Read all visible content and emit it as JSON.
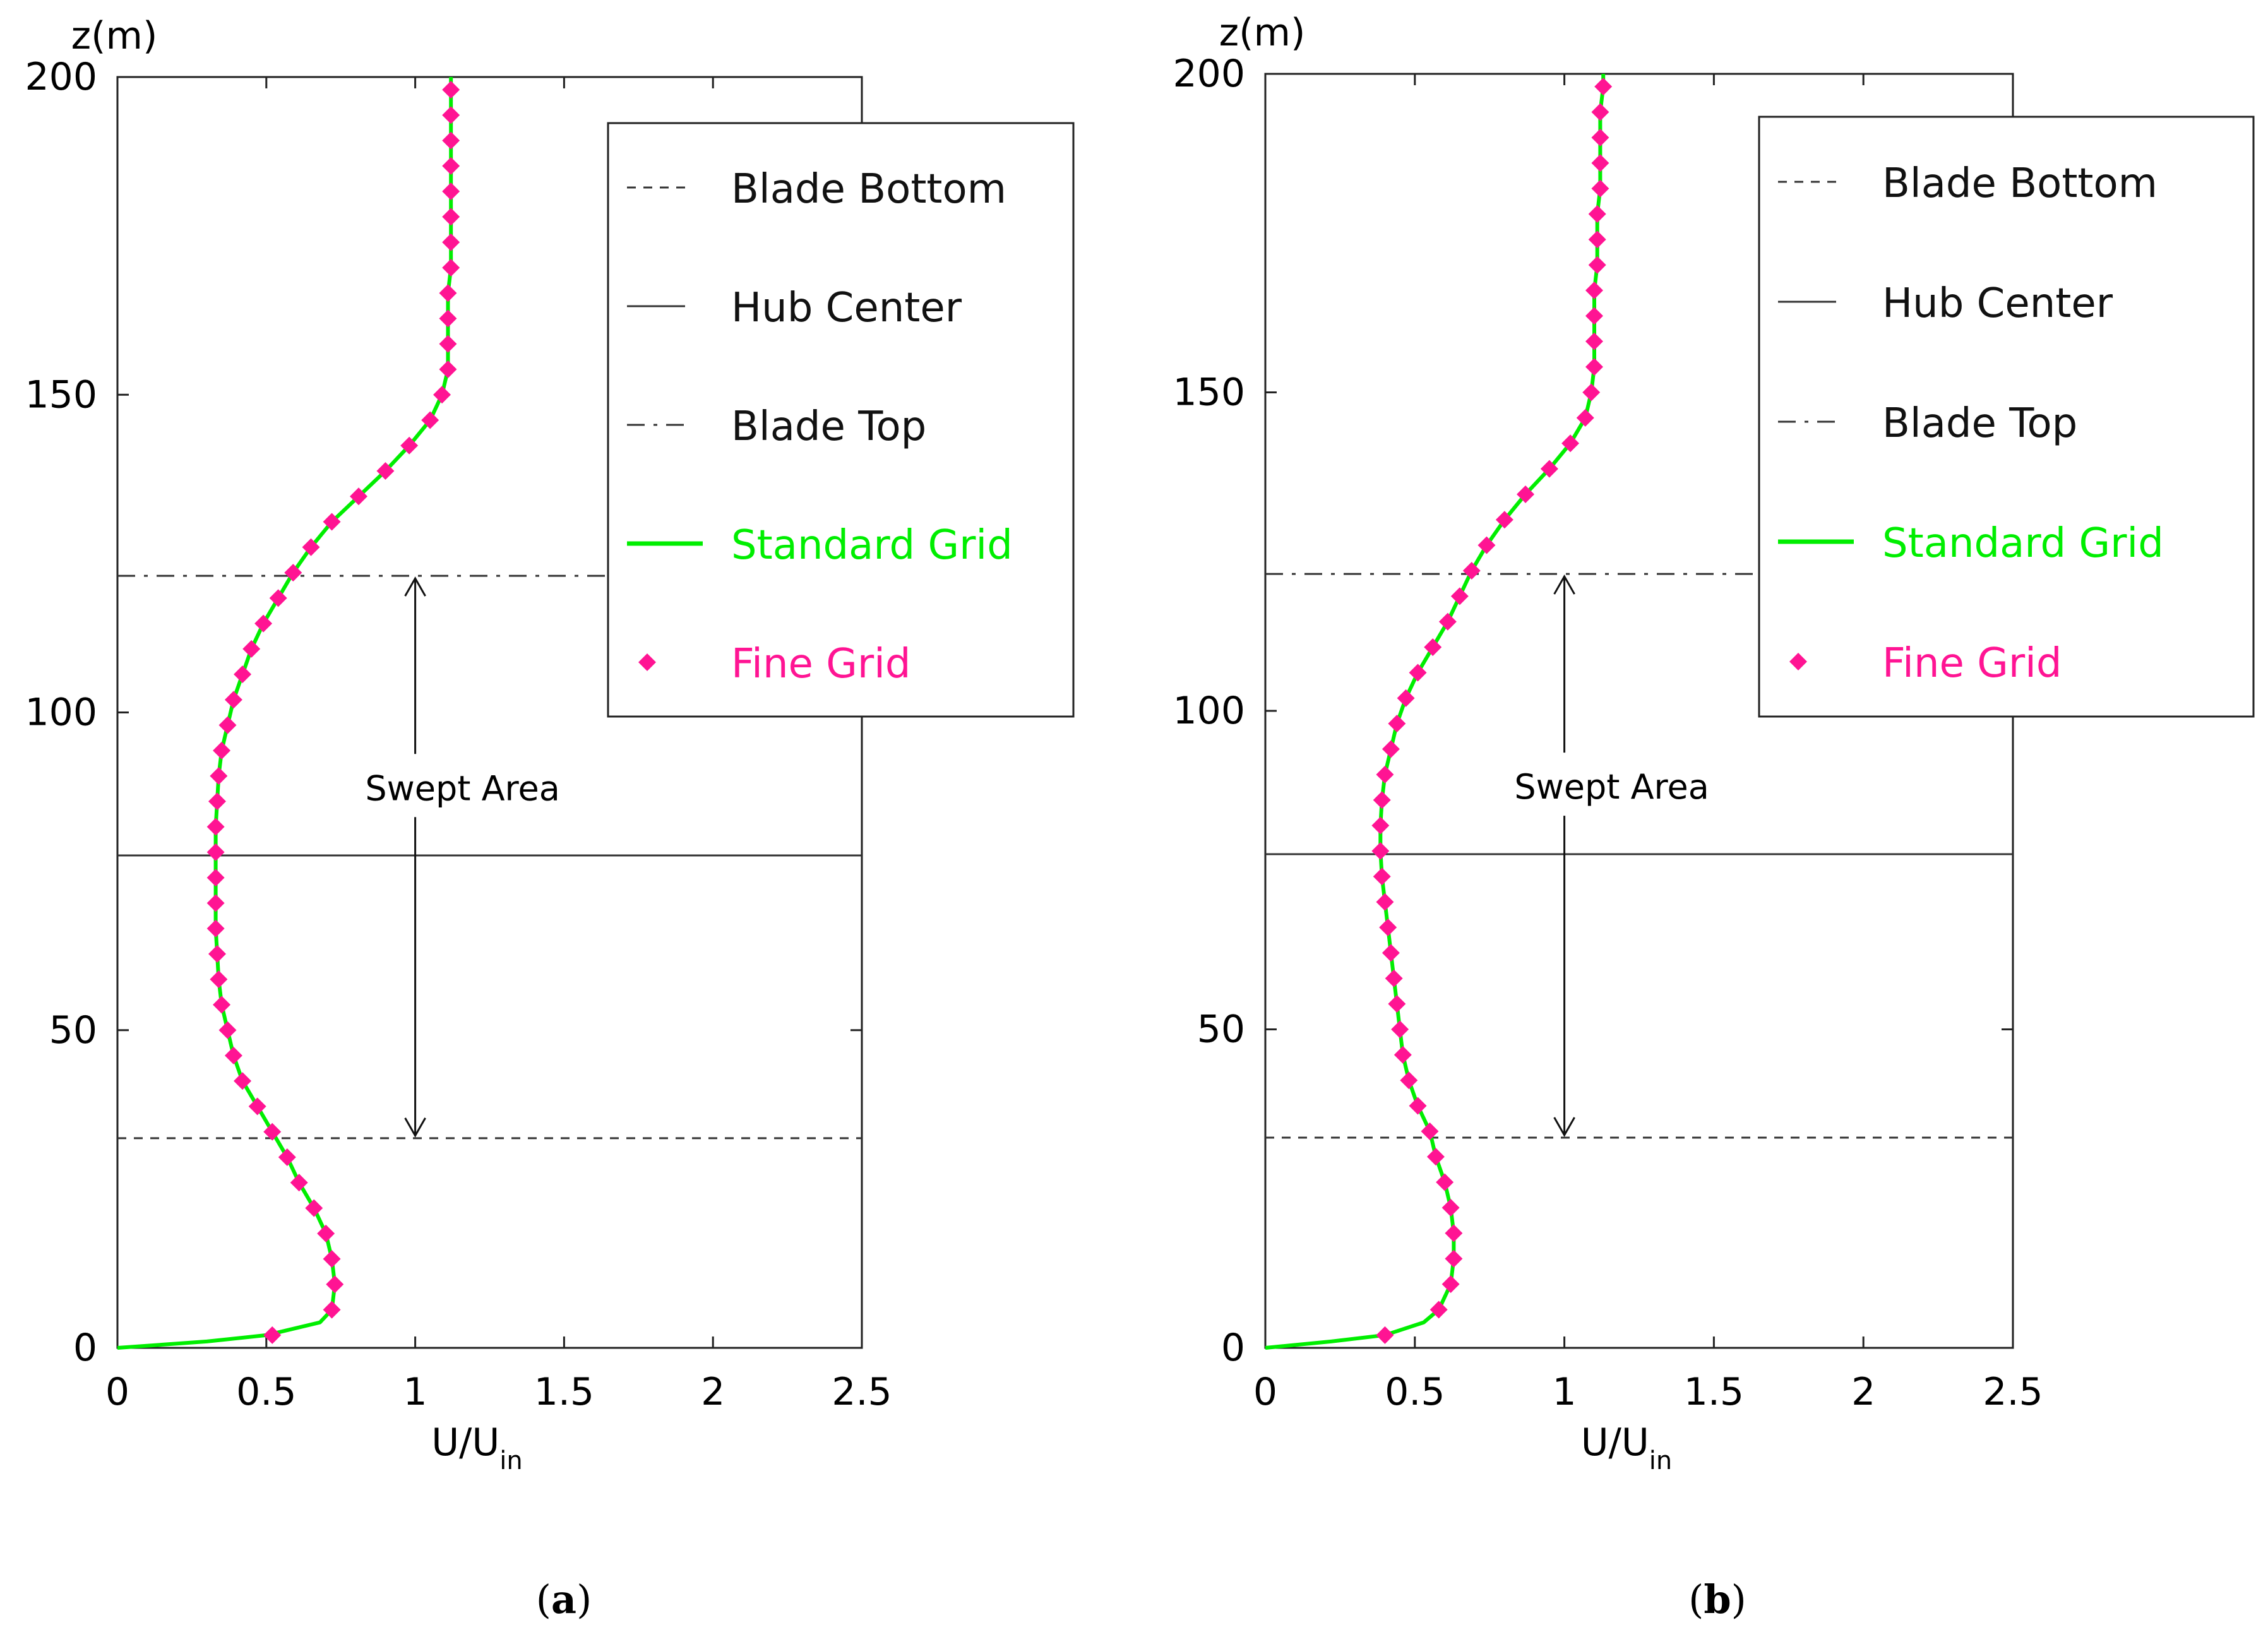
{
  "chart_data": [
    {
      "type": "line",
      "panel": "a",
      "caption": {
        "open": "(",
        "letter": "a",
        "close": ")"
      },
      "ylabel": "z(m)",
      "xlabel": {
        "main": "U/U",
        "sub": "in"
      },
      "xlim": [
        0,
        2.5
      ],
      "ylim": [
        0,
        200
      ],
      "xticks": [
        0,
        0.5,
        1,
        1.5,
        2,
        2.5
      ],
      "xtick_labels": [
        "0",
        "0.5",
        "1",
        "1.5",
        "2",
        "2.5"
      ],
      "yticks": [
        0,
        50,
        100,
        150,
        200
      ],
      "ytick_labels": [
        "0",
        "50",
        "100",
        "150",
        "200"
      ],
      "reference_lines": [
        {
          "name": "Blade Bottom",
          "z": 33,
          "style": "dashed"
        },
        {
          "name": "Hub Center",
          "z": 77.5,
          "style": "solid"
        },
        {
          "name": "Blade Top",
          "z": 121.5,
          "style": "dashdot"
        }
      ],
      "annotation": {
        "text": "Swept Area",
        "x": 1.0,
        "from": 121.5,
        "to": 33,
        "label_z": 88
      },
      "legend": [
        {
          "label": "Blade Bottom",
          "style": "dashed",
          "color": "#333333"
        },
        {
          "label": "Hub Center",
          "style": "solid",
          "color": "#333333"
        },
        {
          "label": "Blade Top",
          "style": "dashdot",
          "color": "#333333"
        },
        {
          "label": "Standard Grid",
          "style": "line",
          "color": "#00ee00"
        },
        {
          "label": "Fine Grid",
          "style": "diamond",
          "color": "#ff1493"
        }
      ],
      "series": [
        {
          "name": "Standard Grid",
          "color": "#00ee00",
          "z": [
            0,
            1,
            2,
            4,
            6,
            10,
            14,
            18,
            22,
            26,
            30,
            34,
            38,
            42,
            46,
            50,
            54,
            58,
            62,
            66,
            70,
            74,
            78,
            82,
            86,
            90,
            94,
            98,
            102,
            106,
            110,
            114,
            118,
            122,
            126,
            130,
            134,
            138,
            142,
            146,
            150,
            154,
            158,
            162,
            166,
            170,
            174,
            178,
            182,
            186,
            190,
            194,
            198,
            200
          ],
          "u": [
            0,
            0.3,
            0.5,
            0.68,
            0.72,
            0.73,
            0.72,
            0.7,
            0.66,
            0.61,
            0.57,
            0.52,
            0.47,
            0.42,
            0.39,
            0.37,
            0.35,
            0.34,
            0.335,
            0.33,
            0.33,
            0.33,
            0.33,
            0.33,
            0.335,
            0.34,
            0.35,
            0.37,
            0.39,
            0.42,
            0.45,
            0.49,
            0.54,
            0.59,
            0.65,
            0.72,
            0.81,
            0.9,
            0.98,
            1.05,
            1.09,
            1.11,
            1.11,
            1.11,
            1.11,
            1.12,
            1.12,
            1.12,
            1.12,
            1.12,
            1.12,
            1.12,
            1.12,
            1.12
          ]
        },
        {
          "name": "Fine Grid",
          "color": "#ff1493",
          "z": [
            2,
            6,
            10,
            14,
            18,
            22,
            26,
            30,
            34,
            38,
            42,
            46,
            50,
            54,
            58,
            62,
            66,
            70,
            74,
            78,
            82,
            86,
            90,
            94,
            98,
            102,
            106,
            110,
            114,
            118,
            122,
            126,
            130,
            134,
            138,
            142,
            146,
            150,
            154,
            158,
            162,
            166,
            170,
            174,
            178,
            182,
            186,
            190,
            194,
            198
          ],
          "u": [
            0.52,
            0.72,
            0.73,
            0.72,
            0.7,
            0.66,
            0.61,
            0.57,
            0.52,
            0.47,
            0.42,
            0.39,
            0.37,
            0.35,
            0.34,
            0.335,
            0.33,
            0.33,
            0.33,
            0.33,
            0.33,
            0.335,
            0.34,
            0.35,
            0.37,
            0.39,
            0.42,
            0.45,
            0.49,
            0.54,
            0.59,
            0.65,
            0.72,
            0.81,
            0.9,
            0.98,
            1.05,
            1.09,
            1.11,
            1.11,
            1.11,
            1.11,
            1.12,
            1.12,
            1.12,
            1.12,
            1.12,
            1.12,
            1.12,
            1.12
          ]
        }
      ]
    },
    {
      "type": "line",
      "panel": "b",
      "caption": {
        "open": "(",
        "letter": "b",
        "close": ")"
      },
      "ylabel": "z(m)",
      "xlabel": {
        "main": "U/U",
        "sub": "in"
      },
      "xlim": [
        0,
        2.5
      ],
      "ylim": [
        0,
        200
      ],
      "xticks": [
        0,
        0.5,
        1,
        1.5,
        2,
        2.5
      ],
      "xtick_labels": [
        "0",
        "0.5",
        "1",
        "1.5",
        "2",
        "2.5"
      ],
      "yticks": [
        0,
        50,
        100,
        150,
        200
      ],
      "ytick_labels": [
        "0",
        "50",
        "100",
        "150",
        "200"
      ],
      "reference_lines": [
        {
          "name": "Blade Bottom",
          "z": 33,
          "style": "dashed"
        },
        {
          "name": "Hub Center",
          "z": 77.5,
          "style": "solid"
        },
        {
          "name": "Blade Top",
          "z": 121.5,
          "style": "dashdot"
        }
      ],
      "annotation": {
        "text": "Swept Area",
        "x": 1.0,
        "from": 121.5,
        "to": 33,
        "label_z": 88
      },
      "legend": [
        {
          "label": "Blade Bottom",
          "style": "dashed",
          "color": "#333333"
        },
        {
          "label": "Hub Center",
          "style": "solid",
          "color": "#333333"
        },
        {
          "label": "Blade Top",
          "style": "dashdot",
          "color": "#333333"
        },
        {
          "label": "Standard Grid",
          "style": "line",
          "color": "#00ee00"
        },
        {
          "label": "Fine Grid",
          "style": "diamond",
          "color": "#ff1493"
        }
      ],
      "series": [
        {
          "name": "Standard Grid",
          "color": "#00ee00",
          "z": [
            0,
            1,
            2,
            4,
            6,
            10,
            14,
            18,
            22,
            26,
            30,
            34,
            38,
            42,
            46,
            50,
            54,
            58,
            62,
            66,
            70,
            74,
            78,
            82,
            86,
            90,
            94,
            98,
            102,
            106,
            110,
            114,
            118,
            122,
            126,
            130,
            134,
            138,
            142,
            146,
            150,
            154,
            158,
            162,
            166,
            170,
            174,
            178,
            182,
            186,
            190,
            194,
            198,
            200
          ],
          "u": [
            0,
            0.22,
            0.4,
            0.53,
            0.58,
            0.62,
            0.63,
            0.63,
            0.62,
            0.6,
            0.57,
            0.55,
            0.51,
            0.48,
            0.46,
            0.45,
            0.44,
            0.43,
            0.42,
            0.41,
            0.4,
            0.39,
            0.385,
            0.385,
            0.39,
            0.4,
            0.42,
            0.44,
            0.47,
            0.51,
            0.56,
            0.61,
            0.65,
            0.69,
            0.74,
            0.8,
            0.87,
            0.95,
            1.02,
            1.07,
            1.09,
            1.1,
            1.1,
            1.1,
            1.1,
            1.11,
            1.11,
            1.11,
            1.12,
            1.12,
            1.12,
            1.12,
            1.13,
            1.13
          ]
        },
        {
          "name": "Fine Grid",
          "color": "#ff1493",
          "z": [
            2,
            6,
            10,
            14,
            18,
            22,
            26,
            30,
            34,
            38,
            42,
            46,
            50,
            54,
            58,
            62,
            66,
            70,
            74,
            78,
            82,
            86,
            90,
            94,
            98,
            102,
            106,
            110,
            114,
            118,
            122,
            126,
            130,
            134,
            138,
            142,
            146,
            150,
            154,
            158,
            162,
            166,
            170,
            174,
            178,
            182,
            186,
            190,
            194,
            198
          ],
          "u": [
            0.4,
            0.58,
            0.62,
            0.63,
            0.63,
            0.62,
            0.6,
            0.57,
            0.55,
            0.51,
            0.48,
            0.46,
            0.45,
            0.44,
            0.43,
            0.42,
            0.41,
            0.4,
            0.39,
            0.385,
            0.385,
            0.39,
            0.4,
            0.42,
            0.44,
            0.47,
            0.51,
            0.56,
            0.61,
            0.65,
            0.69,
            0.74,
            0.8,
            0.87,
            0.95,
            1.02,
            1.07,
            1.09,
            1.1,
            1.1,
            1.1,
            1.1,
            1.11,
            1.11,
            1.11,
            1.12,
            1.12,
            1.12,
            1.12,
            1.13
          ]
        }
      ]
    }
  ]
}
